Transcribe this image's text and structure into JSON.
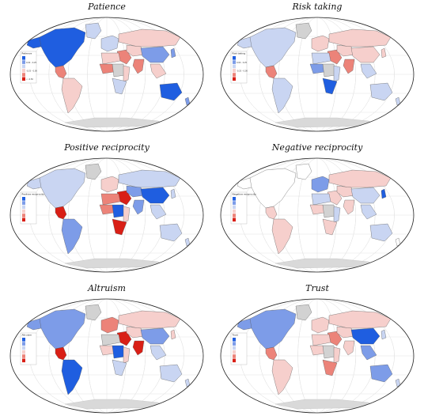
{
  "colors": {
    "ocean": "#ffffff",
    "outline": "#222222",
    "grid": "#e2e2e2",
    "nodata": "#d2d2d2",
    "antarctica": "#d9d9d9",
    "strong_blue": "#1f5ee0",
    "mid_blue": "#7d9ce8",
    "light_blue": "#c9d5f2",
    "light_red": "#f6cfcc",
    "mid_red": "#ec8379",
    "strong_red": "#d91f16"
  },
  "maps": [
    {
      "title": "Patience",
      "legend_title": "Patience",
      "legend_ticks": [
        "",
        "0.00 - 0.25",
        "",
        "-0.25 - 0.00",
        "",
        "< -0.50"
      ],
      "regions": {
        "north_america": "strong_blue",
        "alaska": "strong_blue",
        "greenland": "light_blue",
        "central_america": "mid_red",
        "south_america": "light_red",
        "europe": "light_blue",
        "russia": "light_red",
        "middle_east": "mid_red",
        "central_asia": "light_red",
        "china": "mid_blue",
        "india": "mid_red",
        "southeast_asia": "light_red",
        "japan": "mid_blue",
        "north_africa": "light_red",
        "west_africa": "mid_red",
        "central_africa": "nodata",
        "east_africa": "light_red",
        "southern_africa": "light_blue",
        "australia": "strong_blue",
        "new_zealand": "mid_blue"
      }
    },
    {
      "title": "Risk taking",
      "legend_title": "Risk taking",
      "legend_ticks": [
        "",
        "0.00 - 0.25",
        "",
        "-0.25 - 0.00",
        "",
        ""
      ],
      "regions": {
        "north_america": "light_blue",
        "alaska": "light_blue",
        "greenland": "nodata",
        "central_america": "mid_red",
        "south_america": "light_blue",
        "europe": "light_red",
        "russia": "light_red",
        "middle_east": "mid_red",
        "central_asia": "light_red",
        "china": "light_red",
        "india": "mid_red",
        "southeast_asia": "light_blue",
        "japan": "light_red",
        "north_africa": "light_blue",
        "west_africa": "mid_blue",
        "central_africa": "nodata",
        "east_africa": "light_blue",
        "southern_africa": "strong_blue",
        "australia": "light_blue",
        "new_zealand": "light_blue"
      }
    },
    {
      "title": "Positive reciprocity",
      "legend_title": "Positive reciprocity",
      "legend_ticks": [
        "",
        "",
        "",
        "",
        "",
        ""
      ],
      "regions": {
        "north_america": "light_blue",
        "alaska": "light_blue",
        "greenland": "nodata",
        "central_america": "strong_red",
        "south_america": "mid_blue",
        "europe": "light_red",
        "russia": "light_blue",
        "middle_east": "strong_red",
        "central_asia": "mid_blue",
        "china": "strong_blue",
        "india": "mid_blue",
        "southeast_asia": "light_blue",
        "japan": "light_blue",
        "north_africa": "mid_red",
        "west_africa": "mid_red",
        "central_africa": "strong_blue",
        "east_africa": "light_red",
        "southern_africa": "strong_red",
        "australia": "light_blue",
        "new_zealand": "light_blue"
      }
    },
    {
      "title": "Negative reciprocity",
      "legend_title": "Negative reciprocity",
      "legend_ticks": [
        "",
        "",
        "",
        "",
        "",
        ""
      ],
      "regions": {
        "north_america": "ocean",
        "alaska": "ocean",
        "greenland": "ocean",
        "central_america": "light_red",
        "south_america": "light_red",
        "europe": "mid_blue",
        "russia": "light_red",
        "middle_east": "light_red",
        "central_asia": "light_red",
        "china": "light_blue",
        "india": "light_red",
        "southeast_asia": "light_blue",
        "japan": "strong_blue",
        "north_africa": "light_blue",
        "west_africa": "light_red",
        "central_africa": "nodata",
        "east_africa": "light_blue",
        "southern_africa": "light_red",
        "australia": "light_blue",
        "new_zealand": "ocean"
      }
    },
    {
      "title": "Altruism",
      "legend_title": "Altruism",
      "legend_ticks": [
        "",
        "",
        "",
        "",
        "",
        ""
      ],
      "regions": {
        "north_america": "mid_blue",
        "alaska": "mid_blue",
        "greenland": "nodata",
        "central_america": "strong_red",
        "south_america": "strong_blue",
        "europe": "mid_red",
        "russia": "light_red",
        "middle_east": "strong_red",
        "central_asia": "light_red",
        "china": "mid_blue",
        "india": "strong_red",
        "southeast_asia": "light_blue",
        "japan": "light_red",
        "north_africa": "nodata",
        "west_africa": "light_red",
        "central_africa": "strong_blue",
        "east_africa": "light_red",
        "southern_africa": "light_blue",
        "australia": "light_blue",
        "new_zealand": "light_blue"
      }
    },
    {
      "title": "Trust",
      "legend_title": "Trust",
      "legend_ticks": [
        "",
        "",
        "",
        "",
        "",
        ""
      ],
      "regions": {
        "north_america": "mid_blue",
        "alaska": "mid_blue",
        "greenland": "nodata",
        "central_america": "mid_red",
        "south_america": "light_red",
        "europe": "light_red",
        "russia": "light_red",
        "middle_east": "mid_red",
        "central_asia": "light_red",
        "china": "strong_blue",
        "india": "light_red",
        "southeast_asia": "mid_blue",
        "japan": "light_blue",
        "north_africa": "light_red",
        "west_africa": "light_red",
        "central_africa": "nodata",
        "east_africa": "light_red",
        "southern_africa": "mid_red",
        "australia": "mid_blue",
        "new_zealand": "light_blue"
      }
    }
  ]
}
